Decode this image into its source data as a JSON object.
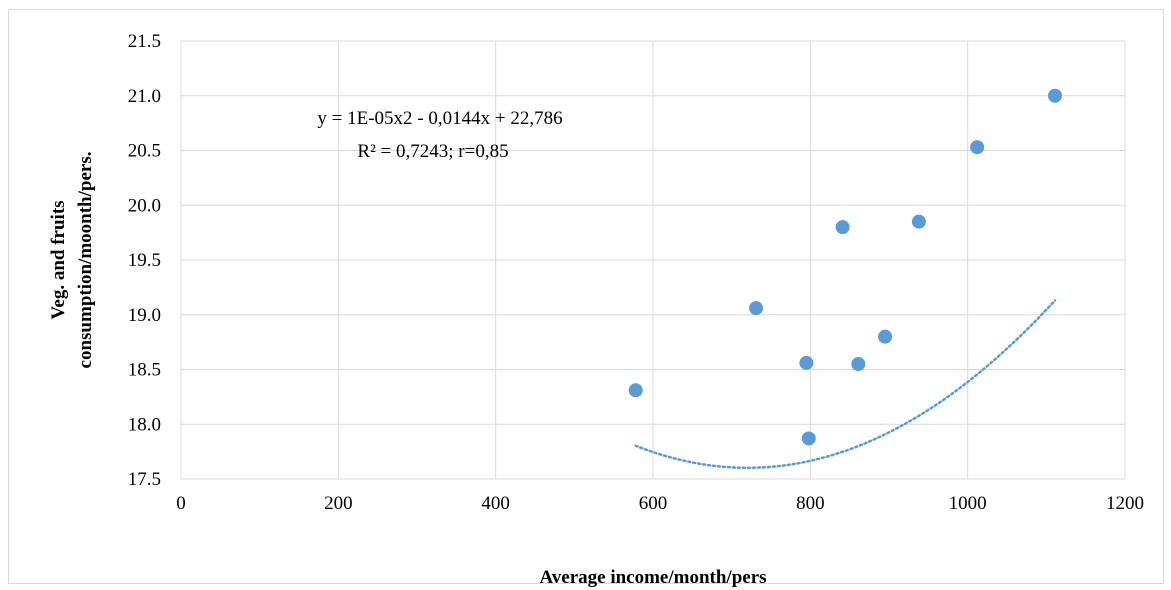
{
  "chart_data": {
    "type": "scatter",
    "title": "",
    "xlabel": "Average income/month/pers",
    "ylabel_lines": [
      "Veg. and fruits",
      "consumption/moonth/pers."
    ],
    "xlim": [
      0,
      1200
    ],
    "ylim": [
      17.5,
      21.5
    ],
    "xticks": [
      0,
      200,
      400,
      600,
      800,
      1000,
      1200
    ],
    "xtick_labels": [
      "0",
      "200",
      "400",
      "600",
      "800",
      "1000",
      "1200"
    ],
    "yticks": [
      17.5,
      18.0,
      18.5,
      19.0,
      19.5,
      20.0,
      20.5,
      21.0,
      21.5
    ],
    "ytick_labels": [
      "17.5",
      "18.0",
      "18.5",
      "19.0",
      "19.5",
      "20.0",
      "20.5",
      "21.0",
      "21.5"
    ],
    "grid": true,
    "points": [
      {
        "x": 578,
        "y": 18.31
      },
      {
        "x": 731,
        "y": 19.06
      },
      {
        "x": 795,
        "y": 18.56
      },
      {
        "x": 798,
        "y": 17.87
      },
      {
        "x": 841,
        "y": 19.8
      },
      {
        "x": 861,
        "y": 18.55
      },
      {
        "x": 895,
        "y": 18.8
      },
      {
        "x": 938,
        "y": 19.85
      },
      {
        "x": 1012,
        "y": 20.53
      },
      {
        "x": 1111,
        "y": 21.0
      }
    ],
    "trendline": {
      "type": "polynomial",
      "coefficients": [
        1e-05,
        -0.0144,
        22.786
      ],
      "x_range": [
        578,
        1111
      ]
    },
    "annotations": [
      "y = 1E-05x2 - 0,0144x + 22,786",
      "R² = 0,7243; r=0,85"
    ],
    "colors": {
      "points": "#5b9bd5",
      "trendline": "#5b9bd5",
      "grid": "#d9d9d9"
    }
  }
}
